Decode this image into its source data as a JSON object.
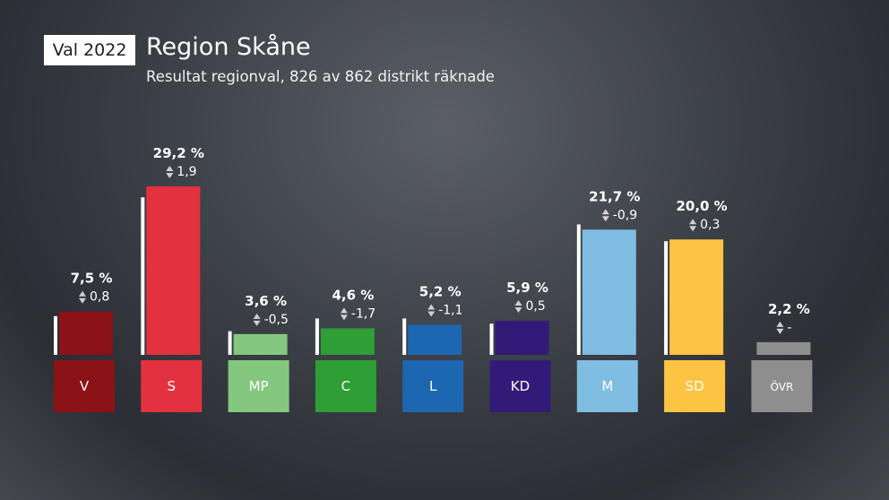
{
  "header": {
    "badge": "Val 2022",
    "title": "Region Skåne",
    "subtitle": "Resultat regionval, 826 av 862 distrikt räknade"
  },
  "chart_data": {
    "type": "bar",
    "categories": [
      "V",
      "S",
      "MP",
      "C",
      "L",
      "KD",
      "M",
      "SD",
      "ÖVR"
    ],
    "values": [
      7.5,
      29.2,
      3.6,
      4.6,
      5.2,
      5.9,
      21.7,
      20.0,
      2.2
    ],
    "value_labels": [
      "7,5 %",
      "29,2 %",
      "3,6 %",
      "4,6 %",
      "5,2 %",
      "5,9 %",
      "21,7 %",
      "20,0 %",
      "2,2 %"
    ],
    "changes": [
      "0,8",
      "1,9",
      "-0,5",
      "-1,7",
      "-1,1",
      "0,5",
      "-0,9",
      "0,3",
      "-"
    ],
    "previous_values": [
      6.7,
      27.3,
      4.1,
      6.3,
      6.3,
      5.4,
      22.6,
      19.7,
      null
    ],
    "colors": [
      "#8b1216",
      "#e3323f",
      "#84c87f",
      "#2f9e35",
      "#1d67b0",
      "#321a78",
      "#7fbde2",
      "#fdc342",
      "#8e8e8e"
    ],
    "ylim": [
      0,
      29.2
    ]
  }
}
